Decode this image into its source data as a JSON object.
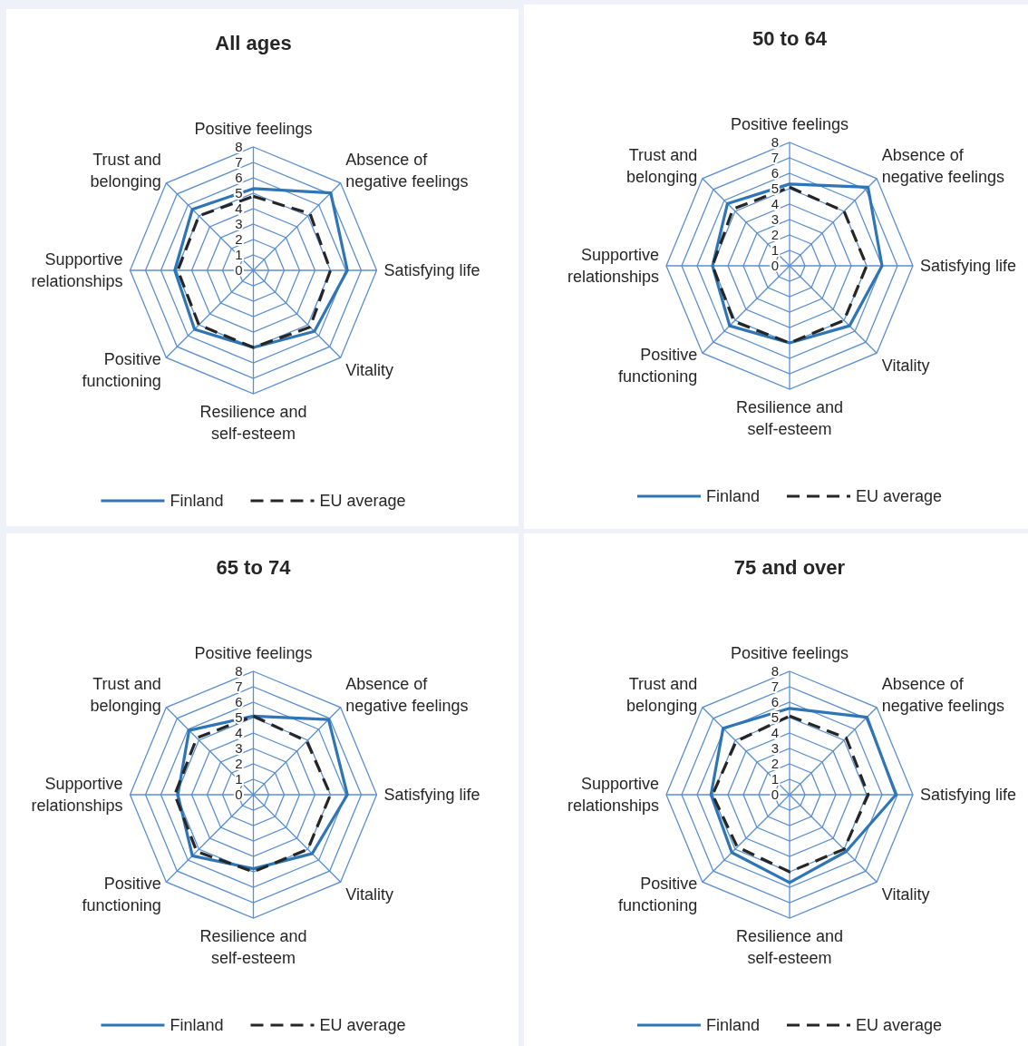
{
  "chart_data": [
    {
      "type": "radar",
      "title": "All ages",
      "categories": [
        "Positive feelings",
        "Absence of negative feelings",
        "Satisfying life",
        "Vitality",
        "Resilience and self-esteem",
        "Positive functioning",
        "Supportive relationships",
        "Trust and belonging"
      ],
      "ylim": [
        0,
        8
      ],
      "yticks": [
        0,
        1,
        2,
        3,
        4,
        5,
        6,
        7,
        8
      ],
      "grid": true,
      "legend": "bottom",
      "series": [
        {
          "name": "Finland",
          "color": "#2e75b6",
          "line_style": "solid",
          "values": [
            5.3,
            7.1,
            6.1,
            5.6,
            5.0,
            5.4,
            5.1,
            5.6
          ]
        },
        {
          "name": "EU average",
          "color": "#262626",
          "line_style": "dashed",
          "values": [
            4.8,
            5.2,
            5.0,
            5.2,
            5.0,
            5.0,
            4.9,
            5.0
          ]
        }
      ]
    },
    {
      "type": "radar",
      "title": "50 to 64",
      "categories": [
        "Positive feelings",
        "Absence of negative feelings",
        "Satisfying life",
        "Vitality",
        "Resilience and self-esteem",
        "Positive functioning",
        "Supportive relationships",
        "Trust and belonging"
      ],
      "ylim": [
        0,
        8
      ],
      "yticks": [
        0,
        1,
        2,
        3,
        4,
        5,
        6,
        7,
        8
      ],
      "grid": true,
      "legend": "bottom",
      "series": [
        {
          "name": "Finland",
          "color": "#2e75b6",
          "line_style": "solid",
          "values": [
            5.3,
            7.2,
            6.0,
            5.5,
            5.0,
            5.5,
            5.0,
            5.7
          ]
        },
        {
          "name": "EU average",
          "color": "#262626",
          "line_style": "dashed",
          "values": [
            5.1,
            5.0,
            5.0,
            5.0,
            5.0,
            5.1,
            5.0,
            5.2
          ]
        }
      ]
    },
    {
      "type": "radar",
      "title": "65 to 74",
      "categories": [
        "Positive feelings",
        "Absence of negative feelings",
        "Satisfying life",
        "Vitality",
        "Resilience and self-esteem",
        "Positive functioning",
        "Supportive relationships",
        "Trust and belonging"
      ],
      "ylim": [
        0,
        8
      ],
      "yticks": [
        0,
        1,
        2,
        3,
        4,
        5,
        6,
        7,
        8
      ],
      "grid": true,
      "legend": "bottom",
      "series": [
        {
          "name": "Finland",
          "color": "#2e75b6",
          "line_style": "solid",
          "values": [
            5.1,
            6.9,
            6.1,
            5.4,
            4.8,
            5.6,
            4.9,
            5.9
          ]
        },
        {
          "name": "EU average",
          "color": "#262626",
          "line_style": "dashed",
          "values": [
            5.1,
            4.9,
            5.0,
            5.0,
            5.0,
            5.2,
            5.1,
            5.2
          ]
        }
      ]
    },
    {
      "type": "radar",
      "title": "75 and over",
      "categories": [
        "Positive feelings",
        "Absence of negative feelings",
        "Satisfying life",
        "Vitality",
        "Resilience and self-esteem",
        "Positive functioning",
        "Supportive relationships",
        "Trust and belonging"
      ],
      "ylim": [
        0,
        8
      ],
      "yticks": [
        0,
        1,
        2,
        3,
        4,
        5,
        6,
        7,
        8
      ],
      "grid": true,
      "legend": "bottom",
      "series": [
        {
          "name": "Finland",
          "color": "#2e75b6",
          "line_style": "solid",
          "values": [
            5.6,
            7.1,
            6.9,
            5.2,
            5.7,
            5.3,
            5.1,
            6.1
          ]
        },
        {
          "name": "EU average",
          "color": "#262626",
          "line_style": "dashed",
          "values": [
            5.1,
            5.2,
            5.1,
            5.0,
            5.0,
            4.8,
            5.0,
            4.9
          ]
        }
      ]
    }
  ]
}
